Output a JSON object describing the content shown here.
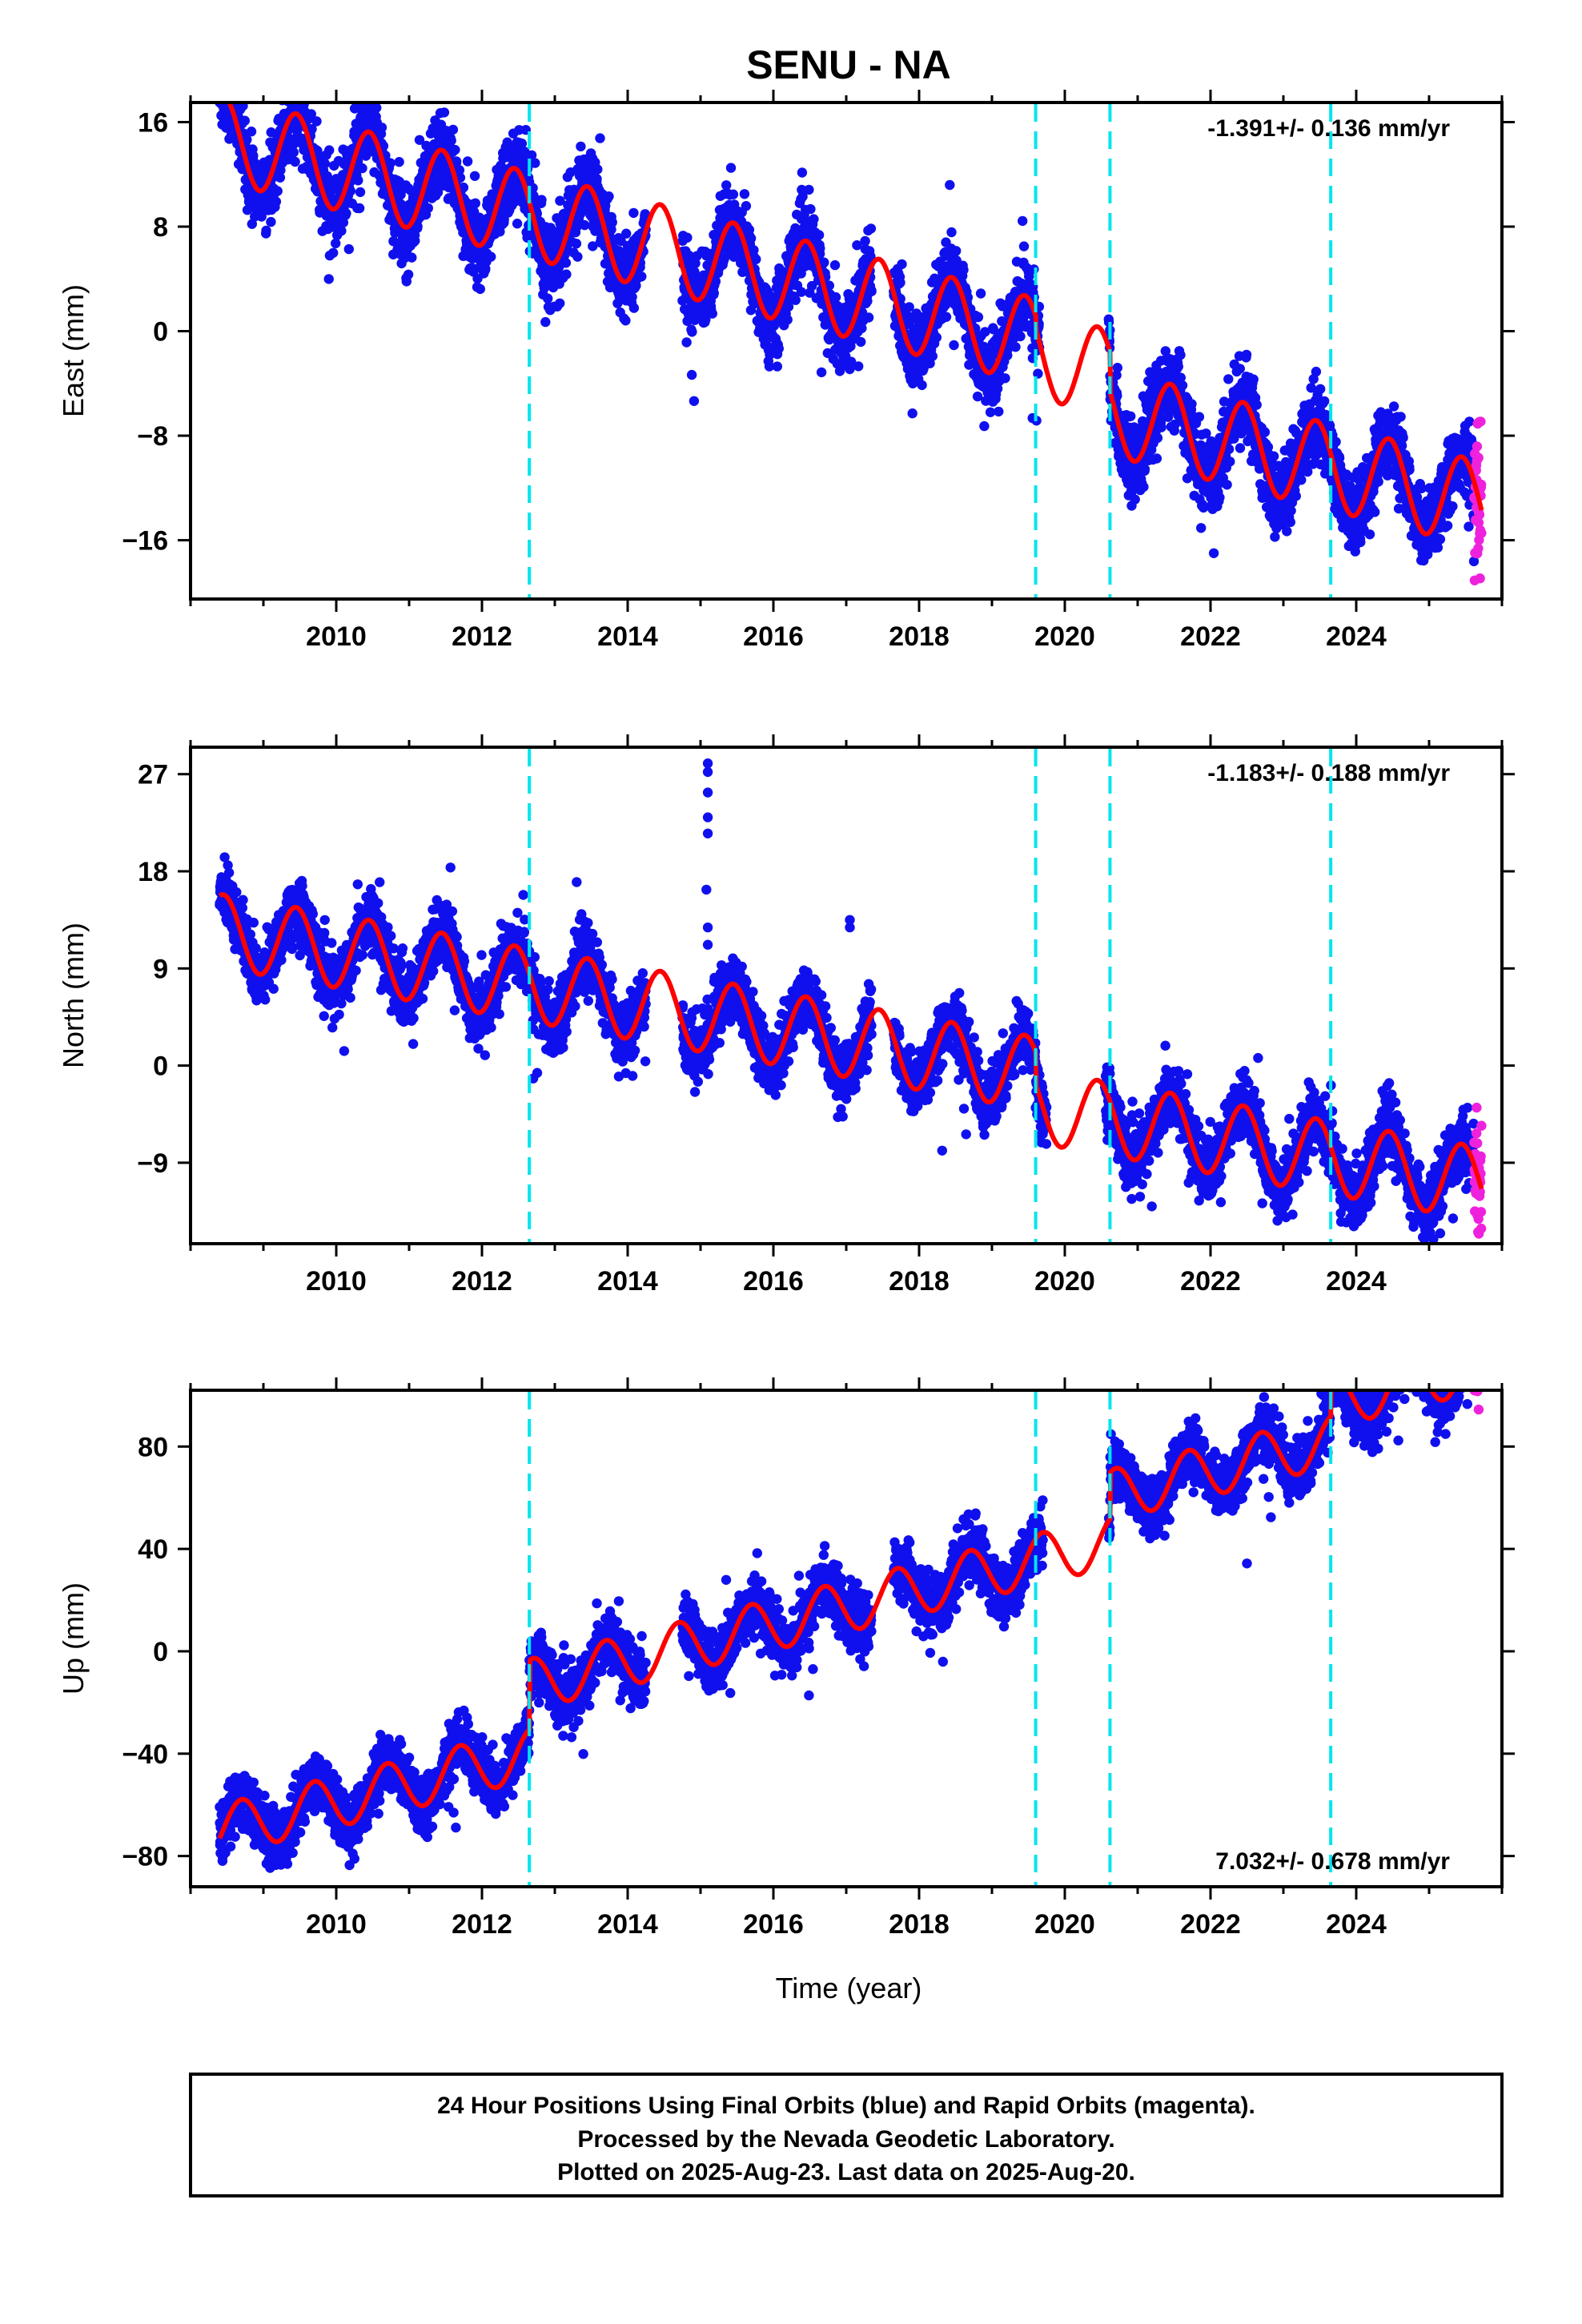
{
  "title": "SENU - NA",
  "xlabel": "Time (year)",
  "colors": {
    "final_orbits": "#1010ee",
    "rapid_orbits": "#ee22dd",
    "model_fit": "#ff0000",
    "event_lines": "#00e5ee"
  },
  "footer": {
    "line1": "24 Hour Positions Using Final Orbits (blue) and Rapid Orbits (magenta).",
    "line2": "Processed by the Nevada Geodetic Laboratory.",
    "line3": "Plotted on 2025-Aug-23. Last data on 2025-Aug-20."
  },
  "chart_data": [
    {
      "type": "scatter",
      "component": "East",
      "ylabel": "East (mm)",
      "rate_text": "-1.391+/- 0.136 mm/yr",
      "rate_position": "top-right",
      "xlim": [
        2008.0,
        2026.0
      ],
      "ylim": [
        -20.5,
        17.5
      ],
      "x_ticks": [
        2010,
        2012,
        2014,
        2016,
        2018,
        2020,
        2022,
        2024
      ],
      "y_ticks": [
        16,
        8,
        0,
        -8,
        -16
      ],
      "y_tick_labels": [
        "16",
        "8",
        "0",
        "−8",
        "−16"
      ],
      "event_lines_x": [
        2012.65,
        2019.6,
        2020.62,
        2023.65
      ],
      "model": {
        "start_x": 2008.4,
        "start_y": 14.8,
        "rate_mm_per_yr": -1.391,
        "annual_amplitude": 3.3,
        "annual_phase_year": 2008.45,
        "offsets": [
          {
            "x": 2019.6,
            "dy": -1.0
          },
          {
            "x": 2020.62,
            "dy": -3.0
          }
        ]
      },
      "final_orbits_span": [
        2008.4,
        2025.62
      ],
      "rapid_orbits_span": [
        2025.62,
        2025.72
      ],
      "data_gaps": [
        [
          2014.25,
          2014.75
        ],
        [
          2017.35,
          2017.65
        ],
        [
          2019.65,
          2020.6
        ]
      ]
    },
    {
      "type": "scatter",
      "component": "North",
      "ylabel": "North (mm)",
      "rate_text": "-1.183+/- 0.188 mm/yr",
      "rate_position": "top-right",
      "xlim": [
        2008.0,
        2026.0
      ],
      "ylim": [
        -16.5,
        29.5
      ],
      "x_ticks": [
        2010,
        2012,
        2014,
        2016,
        2018,
        2020,
        2022,
        2024
      ],
      "y_ticks": [
        27,
        18,
        9,
        0,
        -9
      ],
      "y_tick_labels": [
        "27",
        "18",
        "9",
        "0",
        "−9"
      ],
      "event_lines_x": [
        2012.65,
        2019.6,
        2020.62,
        2023.65
      ],
      "model": {
        "start_x": 2008.4,
        "start_y": 12.5,
        "rate_mm_per_yr": -1.183,
        "annual_amplitude": 3.4,
        "annual_phase_year": 2008.45,
        "offsets": [
          {
            "x": 2019.6,
            "dy": -3.0
          }
        ]
      },
      "final_orbits_span": [
        2008.4,
        2025.62
      ],
      "rapid_orbits_span": [
        2025.62,
        2025.72
      ],
      "data_gaps": [
        [
          2014.25,
          2014.75
        ],
        [
          2017.35,
          2017.65
        ],
        [
          2019.75,
          2020.55
        ]
      ],
      "outliers": [
        [
          2015.1,
          28.0
        ],
        [
          2015.1,
          27.2
        ],
        [
          2015.1,
          25.3
        ],
        [
          2015.1,
          23.0
        ],
        [
          2015.1,
          21.5
        ],
        [
          2015.08,
          16.3
        ],
        [
          2015.1,
          12.8
        ],
        [
          2015.1,
          11.2
        ],
        [
          2013.3,
          17.0
        ],
        [
          2017.05,
          13.5
        ],
        [
          2017.05,
          12.8
        ],
        [
          2010.9,
          10.5
        ]
      ]
    },
    {
      "type": "scatter",
      "component": "Up",
      "ylabel": "Up (mm)",
      "rate_text": "7.032+/- 0.678 mm/yr",
      "rate_position": "bottom-right",
      "xlim": [
        2008.0,
        2026.0
      ],
      "ylim": [
        -92.0,
        102.0
      ],
      "x_ticks": [
        2010,
        2012,
        2014,
        2016,
        2018,
        2020,
        2022,
        2024
      ],
      "y_ticks": [
        80,
        40,
        0,
        -40,
        -80
      ],
      "y_tick_labels": [
        "80",
        "40",
        "0",
        "−40",
        "−80"
      ],
      "event_lines_x": [
        2012.65,
        2019.6,
        2020.62,
        2023.65
      ],
      "model": {
        "start_x": 2008.4,
        "start_y": -70.0,
        "rate_mm_per_yr": 7.032,
        "annual_amplitude": 10.0,
        "annual_phase_year": 2008.7,
        "offsets": [
          {
            "x": 2012.65,
            "dy": 27.0
          },
          {
            "x": 2020.62,
            "dy": 18.0
          },
          {
            "x": 2023.65,
            "dy": 15.0
          }
        ]
      },
      "final_orbits_span": [
        2008.4,
        2025.62
      ],
      "rapid_orbits_span": [
        2025.62,
        2025.72
      ],
      "data_gaps": [
        [
          2014.25,
          2014.75
        ],
        [
          2017.35,
          2017.65
        ],
        [
          2019.7,
          2020.6
        ]
      ]
    }
  ]
}
